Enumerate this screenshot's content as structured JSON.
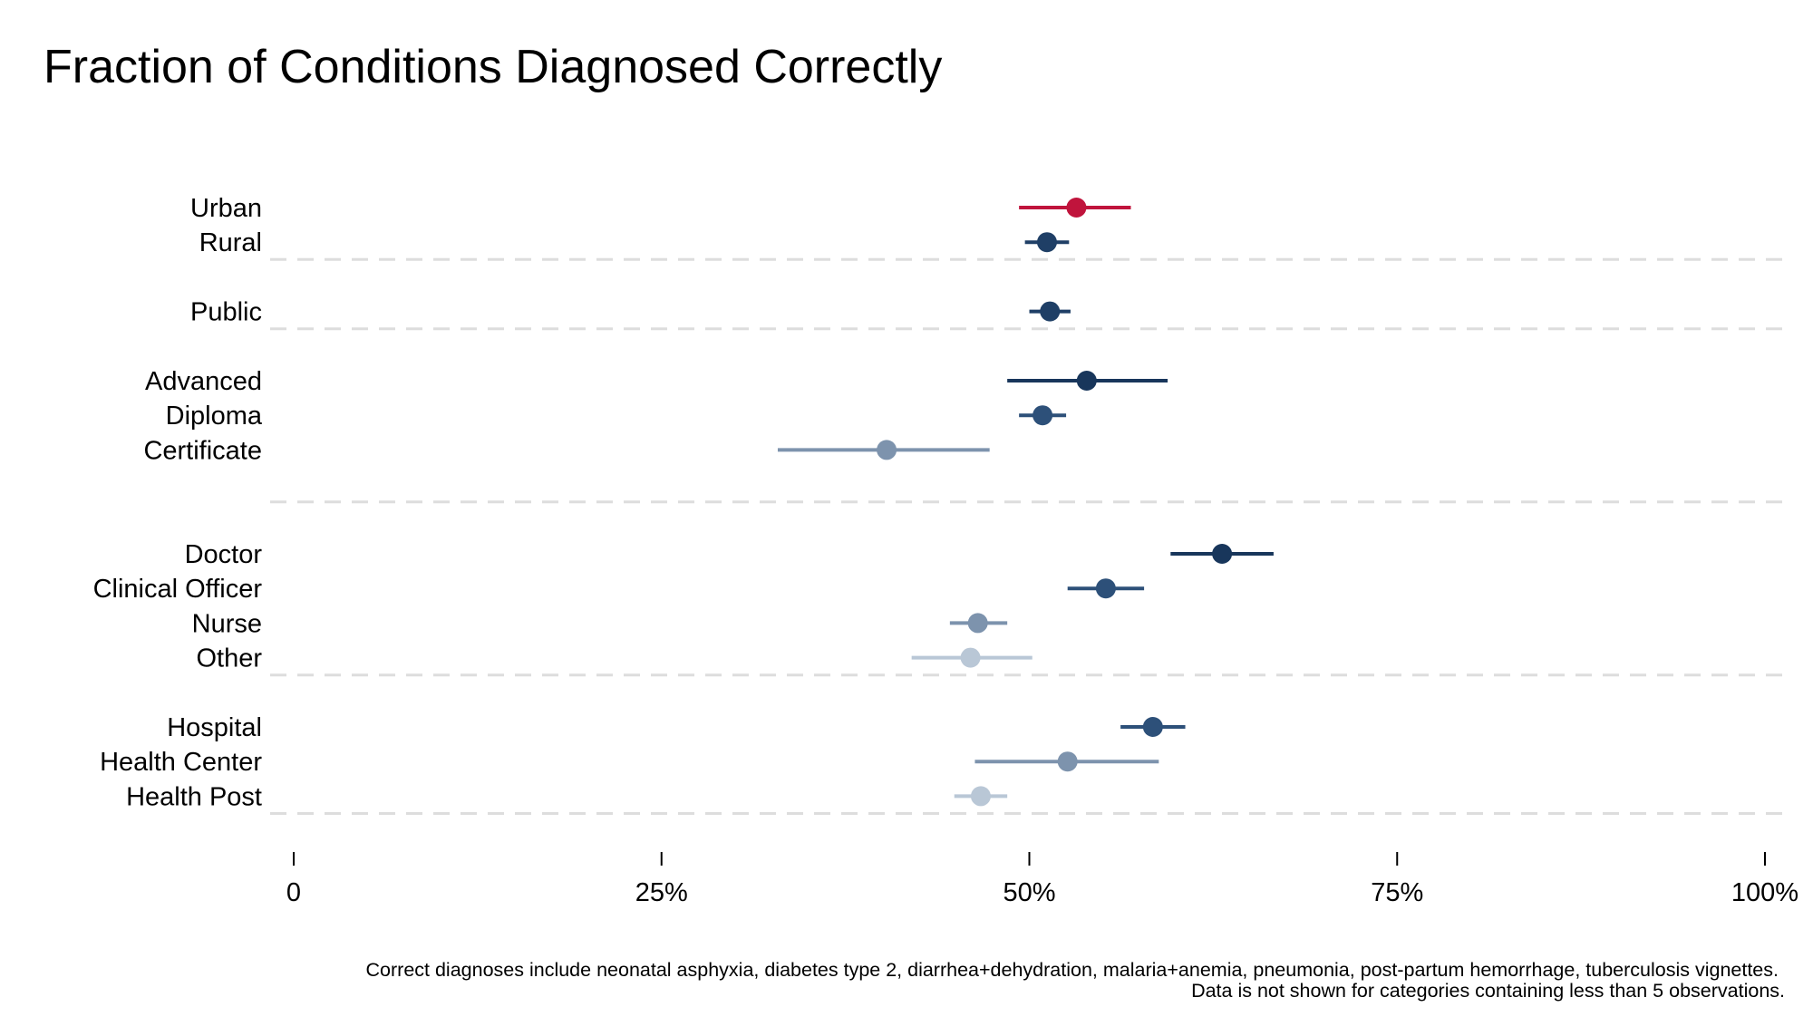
{
  "chart_data": {
    "type": "scatter",
    "title": "Fraction of Conditions Diagnosed Correctly",
    "xlabel": "",
    "ylabel": "",
    "xlim": [
      0,
      100
    ],
    "x_ticks": [
      0,
      25,
      50,
      75,
      100
    ],
    "x_tick_labels": [
      "0",
      "25%",
      "50%",
      "75%",
      "100%"
    ],
    "grid": "dashed horizontal separators between groups",
    "legend": "none",
    "groups": [
      {
        "rows": [
          {
            "label": "Urban",
            "estimate": 53.2,
            "ci_low": 49.3,
            "ci_high": 56.9,
            "color": "#c0143c"
          },
          {
            "label": "Rural",
            "estimate": 51.2,
            "ci_low": 49.7,
            "ci_high": 52.7,
            "color": "#1f3f66"
          }
        ]
      },
      {
        "rows": [
          {
            "label": "Public",
            "estimate": 51.4,
            "ci_low": 50.0,
            "ci_high": 52.8,
            "color": "#1f3f66"
          }
        ]
      },
      {
        "rows": [
          {
            "label": "Advanced",
            "estimate": 53.9,
            "ci_low": 48.5,
            "ci_high": 59.4,
            "color": "#18365b"
          },
          {
            "label": "Diploma",
            "estimate": 50.9,
            "ci_low": 49.3,
            "ci_high": 52.5,
            "color": "#2d5079"
          },
          {
            "label": "Certificate",
            "estimate": 40.3,
            "ci_low": 32.9,
            "ci_high": 47.3,
            "color": "#7d93ad"
          }
        ],
        "trailing_blank_rows": 1
      },
      {
        "rows": [
          {
            "label": "Doctor",
            "estimate": 63.1,
            "ci_low": 59.6,
            "ci_high": 66.6,
            "color": "#18365b"
          },
          {
            "label": "Clinical Officer",
            "estimate": 55.2,
            "ci_low": 52.6,
            "ci_high": 57.8,
            "color": "#2d5079"
          },
          {
            "label": "Nurse",
            "estimate": 46.5,
            "ci_low": 44.6,
            "ci_high": 48.5,
            "color": "#7d93ad"
          },
          {
            "label": "Other",
            "estimate": 46.0,
            "ci_low": 42.0,
            "ci_high": 50.2,
            "color": "#b9c7d6"
          }
        ]
      },
      {
        "rows": [
          {
            "label": "Hospital",
            "estimate": 58.4,
            "ci_low": 56.2,
            "ci_high": 60.6,
            "color": "#2d5079"
          },
          {
            "label": "Health Center",
            "estimate": 52.6,
            "ci_low": 46.3,
            "ci_high": 58.8,
            "color": "#7d93ad"
          },
          {
            "label": "Health Post",
            "estimate": 46.7,
            "ci_low": 44.9,
            "ci_high": 48.5,
            "color": "#b9c7d6"
          }
        ]
      }
    ],
    "annotations": [
      "Correct diagnoses include neonatal asphyxia, diabetes type 2, diarrhea+dehydration, malaria+anemia, pneumonia, post-partum hemorrhage, tuberculosis vignettes.",
      "Data is not shown for categories containing less than 5 observations."
    ]
  },
  "colors": {
    "grid_line": "#dddddd",
    "axis": "#000000"
  }
}
